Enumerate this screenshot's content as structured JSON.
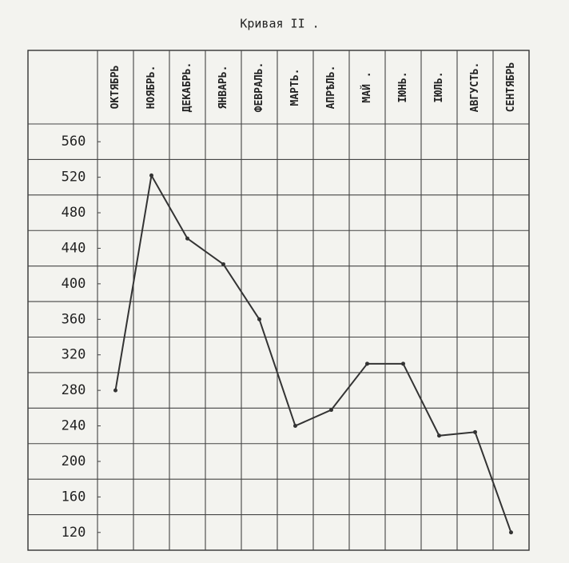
{
  "chart_data": {
    "type": "line",
    "title": "Кривая II .",
    "categories": [
      "ОКТЯБРЬ",
      "НОЯБРЬ.",
      "ДЕКАБРЬ.",
      "ЯНВАРЬ.",
      "ФЕВРАЛЬ.",
      "МАРТЬ.",
      "АПРѢЛЬ.",
      "МАЙ .",
      "ІЮНЬ.",
      "ІЮЛЬ.",
      "АВГУСТЬ.",
      "СЕНТЯБРЬ"
    ],
    "values": [
      280,
      522,
      451,
      422,
      360,
      240,
      258,
      310,
      310,
      229,
      233,
      120
    ],
    "color": "#333333",
    "ylim": [
      100,
      580
    ],
    "yticks": [
      560,
      520,
      480,
      440,
      400,
      360,
      320,
      280,
      240,
      200,
      160,
      120
    ]
  }
}
